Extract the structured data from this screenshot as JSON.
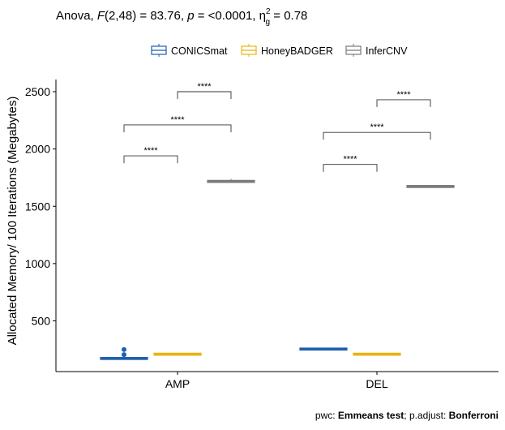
{
  "chart_data": {
    "type": "boxplot",
    "subtitle": {
      "prefix": "Anova, ",
      "f_label": "F",
      "f_args": "(2,48) = 83.76, ",
      "p_label": "p",
      "p_value": " = <0.0001, ",
      "eta": "η",
      "eta_sup": "2",
      "eta_sub": "g",
      "eta_value": " = 0.78"
    },
    "caption": {
      "pwc_label": "pwc: ",
      "pwc_method": "Emmeans test",
      "sep": "; p.adjust: ",
      "adjust_method": "Bonferroni"
    },
    "ylabel": "Allocated Memory/ 100 Iterations (Megabytes)",
    "xlabel": "",
    "ylim": [
      0,
      2600
    ],
    "yticks": [
      500,
      1000,
      1500,
      2000,
      2500
    ],
    "categories": [
      "AMP",
      "DEL"
    ],
    "legend_position": "top",
    "series": [
      {
        "name": "CONICSmat",
        "color": "#1f5fad",
        "boxes": [
          {
            "category": "AMP",
            "min": 170,
            "q1": 170,
            "median": 172,
            "q3": 174,
            "max": 176,
            "outliers": [
              205,
              250
            ]
          },
          {
            "category": "DEL",
            "min": 253,
            "q1": 253,
            "median": 254,
            "q3": 255,
            "max": 256,
            "outliers": []
          }
        ]
      },
      {
        "name": "HoneyBADGER",
        "color": "#e8b30e",
        "boxes": [
          {
            "category": "AMP",
            "min": 208,
            "q1": 208,
            "median": 209,
            "q3": 210,
            "max": 211,
            "outliers": []
          },
          {
            "category": "DEL",
            "min": 208,
            "q1": 208,
            "median": 209,
            "q3": 210,
            "max": 211,
            "outliers": []
          }
        ]
      },
      {
        "name": "InferCNV",
        "color": "#7a7a7a",
        "boxes": [
          {
            "category": "AMP",
            "min": 1706,
            "q1": 1712,
            "median": 1717,
            "q3": 1722,
            "max": 1740,
            "outliers": []
          },
          {
            "category": "DEL",
            "min": 1668,
            "q1": 1670,
            "median": 1672,
            "q3": 1675,
            "max": 1678,
            "outliers": []
          }
        ]
      }
    ],
    "comparisons": [
      {
        "category": "AMP",
        "from": "CONICSmat",
        "to": "HoneyBADGER",
        "y": 1940,
        "label": "****"
      },
      {
        "category": "AMP",
        "from": "CONICSmat",
        "to": "InferCNV",
        "y": 2210,
        "label": "****"
      },
      {
        "category": "AMP",
        "from": "HoneyBADGER",
        "to": "InferCNV",
        "y": 2500,
        "label": "****"
      },
      {
        "category": "DEL",
        "from": "CONICSmat",
        "to": "HoneyBADGER",
        "y": 1865,
        "label": "****"
      },
      {
        "category": "DEL",
        "from": "CONICSmat",
        "to": "InferCNV",
        "y": 2145,
        "label": "****"
      },
      {
        "category": "DEL",
        "from": "HoneyBADGER",
        "to": "InferCNV",
        "y": 2430,
        "label": "****"
      }
    ]
  }
}
